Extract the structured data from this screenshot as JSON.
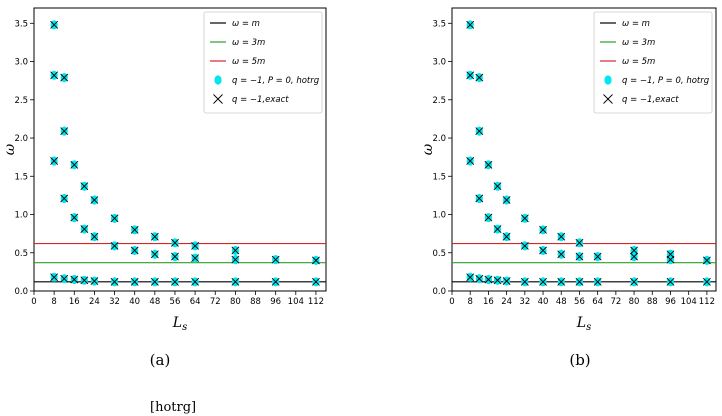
{
  "footnote": "[hotrg]",
  "chart_data": [
    {
      "type": "scatter",
      "panel_label": "(a)",
      "xlabel": "L_s",
      "ylabel": "ω",
      "xlim": [
        0,
        116
      ],
      "ylim": [
        0,
        3.7
      ],
      "xticks": [
        0,
        8,
        16,
        24,
        32,
        40,
        48,
        56,
        64,
        72,
        80,
        88,
        96,
        104,
        112
      ],
      "yticks": [
        0.0,
        0.5,
        1.0,
        1.5,
        2.0,
        2.5,
        3.0,
        3.5
      ],
      "grid": false,
      "legend_position": "top-right",
      "hlines": [
        {
          "name": "ω = m",
          "y": 0.12,
          "color": "#000000"
        },
        {
          "name": "ω = 3m",
          "y": 0.37,
          "color": "#2ca02c"
        },
        {
          "name": "ω = 5m",
          "y": 0.62,
          "color": "#d62728"
        }
      ],
      "series": [
        {
          "name": "q = −1, P = 0, hotrg",
          "marker": "circle",
          "color": "#00e5ee",
          "points": [
            [
              8,
              3.48
            ],
            [
              8,
              2.82
            ],
            [
              8,
              1.7
            ],
            [
              8,
              0.18
            ],
            [
              12,
              2.79
            ],
            [
              12,
              2.09
            ],
            [
              12,
              1.21
            ],
            [
              12,
              0.16
            ],
            [
              16,
              1.65
            ],
            [
              16,
              0.96
            ],
            [
              16,
              0.15
            ],
            [
              20,
              1.37
            ],
            [
              20,
              0.81
            ],
            [
              20,
              0.14
            ],
            [
              24,
              1.19
            ],
            [
              24,
              0.71
            ],
            [
              24,
              0.13
            ],
            [
              32,
              0.95
            ],
            [
              32,
              0.59
            ],
            [
              32,
              0.12
            ],
            [
              40,
              0.8
            ],
            [
              40,
              0.53
            ],
            [
              40,
              0.12
            ],
            [
              48,
              0.71
            ],
            [
              48,
              0.48
            ],
            [
              48,
              0.12
            ],
            [
              56,
              0.63
            ],
            [
              56,
              0.45
            ],
            [
              56,
              0.12
            ],
            [
              64,
              0.59
            ],
            [
              64,
              0.43
            ],
            [
              64,
              0.12
            ],
            [
              80,
              0.53
            ],
            [
              80,
              0.41
            ],
            [
              80,
              0.12
            ],
            [
              96,
              0.41
            ],
            [
              96,
              0.12
            ],
            [
              112,
              0.4
            ],
            [
              112,
              0.12
            ]
          ]
        },
        {
          "name": "q = −1,exact",
          "marker": "x",
          "color": "#000000",
          "points": [
            [
              8,
              3.48
            ],
            [
              8,
              2.82
            ],
            [
              8,
              1.7
            ],
            [
              8,
              0.18
            ],
            [
              12,
              2.79
            ],
            [
              12,
              2.09
            ],
            [
              12,
              1.21
            ],
            [
              12,
              0.16
            ],
            [
              16,
              1.65
            ],
            [
              16,
              0.96
            ],
            [
              16,
              0.15
            ],
            [
              20,
              1.37
            ],
            [
              20,
              0.81
            ],
            [
              20,
              0.14
            ],
            [
              24,
              1.19
            ],
            [
              24,
              0.71
            ],
            [
              24,
              0.13
            ],
            [
              32,
              0.95
            ],
            [
              32,
              0.59
            ],
            [
              32,
              0.12
            ],
            [
              40,
              0.8
            ],
            [
              40,
              0.53
            ],
            [
              40,
              0.12
            ],
            [
              48,
              0.71
            ],
            [
              48,
              0.48
            ],
            [
              48,
              0.12
            ],
            [
              56,
              0.63
            ],
            [
              56,
              0.45
            ],
            [
              56,
              0.12
            ],
            [
              64,
              0.59
            ],
            [
              64,
              0.43
            ],
            [
              64,
              0.12
            ],
            [
              80,
              0.53
            ],
            [
              80,
              0.41
            ],
            [
              80,
              0.12
            ],
            [
              96,
              0.41
            ],
            [
              96,
              0.12
            ],
            [
              112,
              0.4
            ],
            [
              112,
              0.12
            ]
          ]
        }
      ]
    },
    {
      "type": "scatter",
      "panel_label": "(b)",
      "xlabel": "L_s",
      "ylabel": "ω",
      "xlim": [
        0,
        116
      ],
      "ylim": [
        0,
        3.7
      ],
      "xticks": [
        0,
        8,
        16,
        24,
        32,
        40,
        48,
        56,
        64,
        72,
        80,
        88,
        96,
        104,
        112
      ],
      "yticks": [
        0.0,
        0.5,
        1.0,
        1.5,
        2.0,
        2.5,
        3.0,
        3.5
      ],
      "grid": false,
      "legend_position": "top-right",
      "hlines": [
        {
          "name": "ω = m",
          "y": 0.12,
          "color": "#000000"
        },
        {
          "name": "ω = 3m",
          "y": 0.37,
          "color": "#2ca02c"
        },
        {
          "name": "ω = 5m",
          "y": 0.62,
          "color": "#d62728"
        }
      ],
      "series": [
        {
          "name": "q = −1, P = 0, hotrg",
          "marker": "circle",
          "color": "#00e5ee",
          "points": [
            [
              8,
              3.48
            ],
            [
              8,
              2.82
            ],
            [
              8,
              1.7
            ],
            [
              8,
              0.18
            ],
            [
              12,
              2.79
            ],
            [
              12,
              2.09
            ],
            [
              12,
              1.21
            ],
            [
              12,
              0.16
            ],
            [
              16,
              1.65
            ],
            [
              16,
              0.96
            ],
            [
              16,
              0.15
            ],
            [
              20,
              1.37
            ],
            [
              20,
              0.81
            ],
            [
              20,
              0.14
            ],
            [
              24,
              1.19
            ],
            [
              24,
              0.71
            ],
            [
              24,
              0.13
            ],
            [
              32,
              0.95
            ],
            [
              32,
              0.59
            ],
            [
              32,
              0.12
            ],
            [
              40,
              0.8
            ],
            [
              40,
              0.53
            ],
            [
              40,
              0.12
            ],
            [
              48,
              0.71
            ],
            [
              48,
              0.48
            ],
            [
              48,
              0.12
            ],
            [
              56,
              0.63
            ],
            [
              56,
              0.45
            ],
            [
              56,
              0.12
            ],
            [
              64,
              0.45
            ],
            [
              64,
              0.12
            ],
            [
              80,
              0.53
            ],
            [
              80,
              0.45
            ],
            [
              80,
              0.12
            ],
            [
              96,
              0.48
            ],
            [
              96,
              0.41
            ],
            [
              96,
              0.12
            ],
            [
              112,
              0.4
            ],
            [
              112,
              0.12
            ]
          ]
        },
        {
          "name": "q = −1,exact",
          "marker": "x",
          "color": "#000000",
          "points": [
            [
              8,
              3.48
            ],
            [
              8,
              2.82
            ],
            [
              8,
              1.7
            ],
            [
              8,
              0.18
            ],
            [
              12,
              2.79
            ],
            [
              12,
              2.09
            ],
            [
              12,
              1.21
            ],
            [
              12,
              0.16
            ],
            [
              16,
              1.65
            ],
            [
              16,
              0.96
            ],
            [
              16,
              0.15
            ],
            [
              20,
              1.37
            ],
            [
              20,
              0.81
            ],
            [
              20,
              0.14
            ],
            [
              24,
              1.19
            ],
            [
              24,
              0.71
            ],
            [
              24,
              0.13
            ],
            [
              32,
              0.95
            ],
            [
              32,
              0.59
            ],
            [
              32,
              0.12
            ],
            [
              40,
              0.8
            ],
            [
              40,
              0.53
            ],
            [
              40,
              0.12
            ],
            [
              48,
              0.71
            ],
            [
              48,
              0.48
            ],
            [
              48,
              0.12
            ],
            [
              56,
              0.63
            ],
            [
              56,
              0.45
            ],
            [
              56,
              0.12
            ],
            [
              64,
              0.45
            ],
            [
              64,
              0.12
            ],
            [
              80,
              0.53
            ],
            [
              80,
              0.45
            ],
            [
              80,
              0.12
            ],
            [
              96,
              0.48
            ],
            [
              96,
              0.41
            ],
            [
              96,
              0.12
            ],
            [
              112,
              0.4
            ],
            [
              112,
              0.12
            ]
          ]
        }
      ]
    }
  ]
}
